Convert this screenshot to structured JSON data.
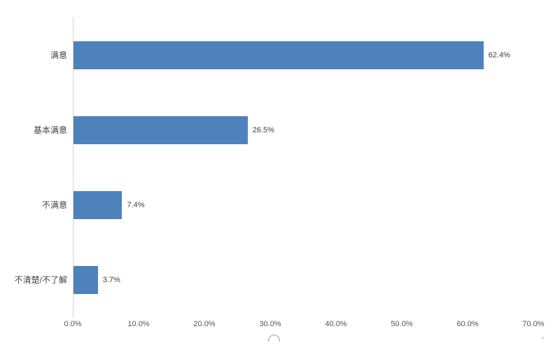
{
  "chart_data": {
    "type": "bar",
    "orientation": "horizontal",
    "categories": [
      "满意",
      "基本满意",
      "不满意",
      "不清楚/不了解"
    ],
    "values": [
      62.4,
      26.5,
      7.4,
      3.7
    ],
    "value_labels": [
      "62.4%",
      "26.5%",
      "7.4%",
      "3.7%"
    ],
    "x_ticks": [
      "0.0%",
      "10.0%",
      "20.0%",
      "30.0%",
      "40.0%",
      "50.0%",
      "60.0%",
      "70.0%"
    ],
    "xlim": [
      0,
      70
    ],
    "grid": false,
    "legend": false,
    "bar_color": "#4f81bd",
    "axis_line_color": "#d6d6d6"
  }
}
